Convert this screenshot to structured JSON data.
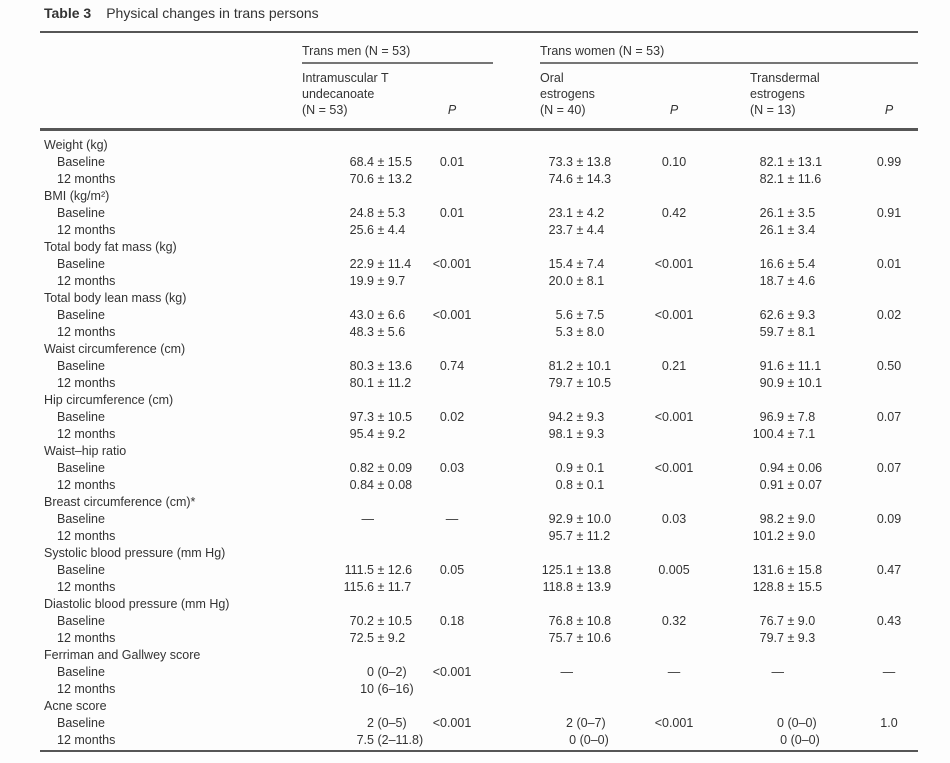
{
  "colors": {
    "text": "#333333",
    "rule": "#565656",
    "group_underline": "#757575",
    "background": "#fdfdfd"
  },
  "table": {
    "title_label": "Table 3",
    "title": "Physical changes in trans persons",
    "group_headers": {
      "trans_men": "Trans men (N = 53)",
      "trans_women": "Trans women (N = 53)"
    },
    "column_headers": {
      "im_t": {
        "line1": "Intramuscular T",
        "line2": "undecanoate",
        "line3": "(N = 53)"
      },
      "p1": "P",
      "oral": {
        "line1": "Oral",
        "line2": "estrogens",
        "line3": "(N = 40)"
      },
      "p2": "P",
      "transdermal": {
        "line1": "Transdermal",
        "line2": "estrogens",
        "line3": "(N = 13)"
      },
      "p3": "P"
    },
    "rows": [
      {
        "type": "section",
        "label": "Weight (kg)"
      },
      {
        "type": "data",
        "label": "Baseline",
        "cells": [
          "68.4 ± 15.5",
          "0.01",
          "73.3 ± 13.8",
          "0.10",
          "82.1 ± 13.1",
          "0.99"
        ]
      },
      {
        "type": "data",
        "label": "12 months",
        "cells": [
          "70.6 ± 13.2",
          "",
          "74.6 ± 14.3",
          "",
          "82.1 ± 11.6",
          ""
        ]
      },
      {
        "type": "section",
        "label": "BMI (kg/m²)"
      },
      {
        "type": "data",
        "label": "Baseline",
        "cells": [
          "24.8 ± 5.3",
          "0.01",
          "23.1 ± 4.2",
          "0.42",
          "26.1 ± 3.5",
          "0.91"
        ]
      },
      {
        "type": "data",
        "label": "12 months",
        "cells": [
          "25.6 ± 4.4",
          "",
          "23.7 ± 4.4",
          "",
          "26.1 ± 3.4",
          ""
        ]
      },
      {
        "type": "section",
        "label": "Total body fat mass (kg)"
      },
      {
        "type": "data",
        "label": "Baseline",
        "cells": [
          "22.9 ± 11.4",
          "<0.001",
          "15.4 ± 7.4",
          "<0.001",
          "16.6 ± 5.4",
          "0.01"
        ]
      },
      {
        "type": "data",
        "label": "12 months",
        "cells": [
          "19.9 ± 9.7",
          "",
          "20.0 ± 8.1",
          "",
          "18.7 ± 4.6",
          ""
        ]
      },
      {
        "type": "section",
        "label": "Total body lean mass (kg)"
      },
      {
        "type": "data",
        "label": "Baseline",
        "cells": [
          "43.0 ± 6.6",
          "<0.001",
          "5.6 ± 7.5",
          "<0.001",
          "62.6 ± 9.3",
          "0.02"
        ]
      },
      {
        "type": "data",
        "label": "12 months",
        "cells": [
          "48.3 ± 5.6",
          "",
          "5.3 ± 8.0",
          "",
          "59.7 ± 8.1",
          ""
        ]
      },
      {
        "type": "section",
        "label": "Waist circumference (cm)"
      },
      {
        "type": "data",
        "label": "Baseline",
        "cells": [
          "80.3 ± 13.6",
          "0.74",
          "81.2 ± 10.1",
          "0.21",
          "91.6 ± 11.1",
          "0.50"
        ]
      },
      {
        "type": "data",
        "label": "12 months",
        "cells": [
          "80.1 ± 11.2",
          "",
          "79.7 ± 10.5",
          "",
          "90.9 ± 10.1",
          ""
        ]
      },
      {
        "type": "section",
        "label": "Hip circumference (cm)"
      },
      {
        "type": "data",
        "label": "Baseline",
        "cells": [
          "97.3 ± 10.5",
          "0.02",
          "94.2 ± 9.3",
          "<0.001",
          "96.9 ± 7.8",
          "0.07"
        ]
      },
      {
        "type": "data",
        "label": "12 months",
        "cells": [
          "95.4 ± 9.2",
          "",
          "98.1 ± 9.3",
          "",
          "100.4 ± 7.1",
          ""
        ]
      },
      {
        "type": "section",
        "label": "Waist–hip ratio"
      },
      {
        "type": "data",
        "label": "Baseline",
        "cells": [
          "0.82 ± 0.09",
          "0.03",
          "0.9 ± 0.1",
          "<0.001",
          "0.94 ± 0.06",
          "0.07"
        ]
      },
      {
        "type": "data",
        "label": "12 months",
        "cells": [
          "0.84 ± 0.08",
          "",
          "0.8 ± 0.1",
          "",
          "0.91 ± 0.07",
          ""
        ]
      },
      {
        "type": "section",
        "label": "Breast circumference (cm)*"
      },
      {
        "type": "data",
        "label": "Baseline",
        "cells": [
          "—",
          "—",
          "92.9 ± 10.0",
          "0.03",
          "98.2 ± 9.0",
          "0.09"
        ]
      },
      {
        "type": "data",
        "label": "12 months",
        "cells": [
          "",
          "",
          "95.7 ± 11.2",
          "",
          "101.2 ± 9.0",
          ""
        ]
      },
      {
        "type": "section",
        "label": "Systolic blood pressure (mm Hg)"
      },
      {
        "type": "data",
        "label": "Baseline",
        "cells": [
          "111.5 ± 12.6",
          "0.05",
          "125.1 ± 13.8",
          "0.005",
          "131.6 ± 15.8",
          "0.47"
        ]
      },
      {
        "type": "data",
        "label": "12 months",
        "cells": [
          "115.6 ± 11.7",
          "",
          "118.8 ± 13.9",
          "",
          "128.8 ± 15.5",
          ""
        ]
      },
      {
        "type": "section",
        "label": "Diastolic blood pressure (mm Hg)"
      },
      {
        "type": "data",
        "label": "Baseline",
        "cells": [
          "70.2 ± 10.5",
          "0.18",
          "76.8 ± 10.8",
          "0.32",
          "76.7 ± 9.0",
          "0.43"
        ]
      },
      {
        "type": "data",
        "label": "12 months",
        "cells": [
          "72.5 ± 9.2",
          "",
          "75.7 ± 10.6",
          "",
          "79.7 ± 9.3",
          ""
        ]
      },
      {
        "type": "section",
        "label": "Ferriman and Gallwey score"
      },
      {
        "type": "data",
        "label": "Baseline",
        "cells": [
          "0 (0–2)",
          "<0.001",
          "—",
          "—",
          "—",
          "—"
        ]
      },
      {
        "type": "data",
        "label": "12 months",
        "cells": [
          "10 (6–16)",
          "",
          "",
          "",
          "",
          ""
        ]
      },
      {
        "type": "section",
        "label": "Acne score"
      },
      {
        "type": "data",
        "label": "Baseline",
        "cells": [
          "2 (0–5)",
          "<0.001",
          "2 (0–7)",
          "<0.001",
          "0 (0–0)",
          "1.0"
        ]
      },
      {
        "type": "data",
        "label": "12 months",
        "cells": [
          "7.5 (2–11.8)",
          "",
          "0 (0–0)",
          "",
          "0 (0–0)",
          ""
        ]
      }
    ]
  }
}
